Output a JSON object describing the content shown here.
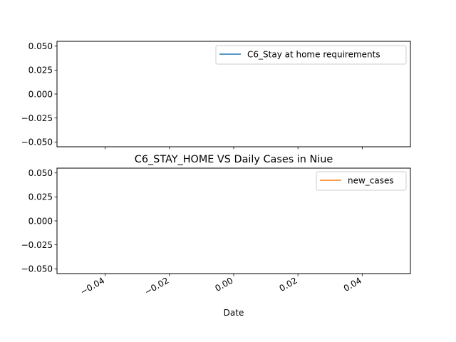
{
  "chart_data": [
    {
      "type": "line",
      "title": "",
      "xlabel": "",
      "ylabel": "",
      "ylim": [
        -0.055,
        0.055
      ],
      "xlim": [
        -0.055,
        0.055
      ],
      "yticks": [
        0.05,
        0.025,
        0.0,
        -0.025,
        -0.05
      ],
      "ytick_labels": [
        "0.050",
        "0.025",
        "0.000",
        "−0.025",
        "−0.050"
      ],
      "xticks": [
        -0.04,
        -0.02,
        0.0,
        0.02,
        0.04
      ],
      "xtick_labels_visible": false,
      "grid": false,
      "legend_placement": "top-right",
      "series": [
        {
          "name": "C6_Stay at home requirements",
          "color": "#1f77b4",
          "x": [],
          "values": []
        }
      ]
    },
    {
      "type": "line",
      "title": "C6_STAY_HOME VS Daily Cases in Niue",
      "xlabel": "Date",
      "ylabel": "",
      "ylim": [
        -0.055,
        0.055
      ],
      "xlim": [
        -0.055,
        0.055
      ],
      "yticks": [
        0.05,
        0.025,
        0.0,
        -0.025,
        -0.05
      ],
      "ytick_labels": [
        "0.050",
        "0.025",
        "0.000",
        "−0.025",
        "−0.050"
      ],
      "xticks": [
        -0.04,
        -0.02,
        0.0,
        0.02,
        0.04
      ],
      "xtick_labels": [
        "−0.04",
        "−0.02",
        "0.00",
        "0.02",
        "0.04"
      ],
      "xtick_labels_visible": true,
      "grid": false,
      "legend_placement": "top-right",
      "series": [
        {
          "name": "new_cases",
          "color": "#ff7f0e",
          "x": [],
          "values": []
        }
      ]
    }
  ]
}
